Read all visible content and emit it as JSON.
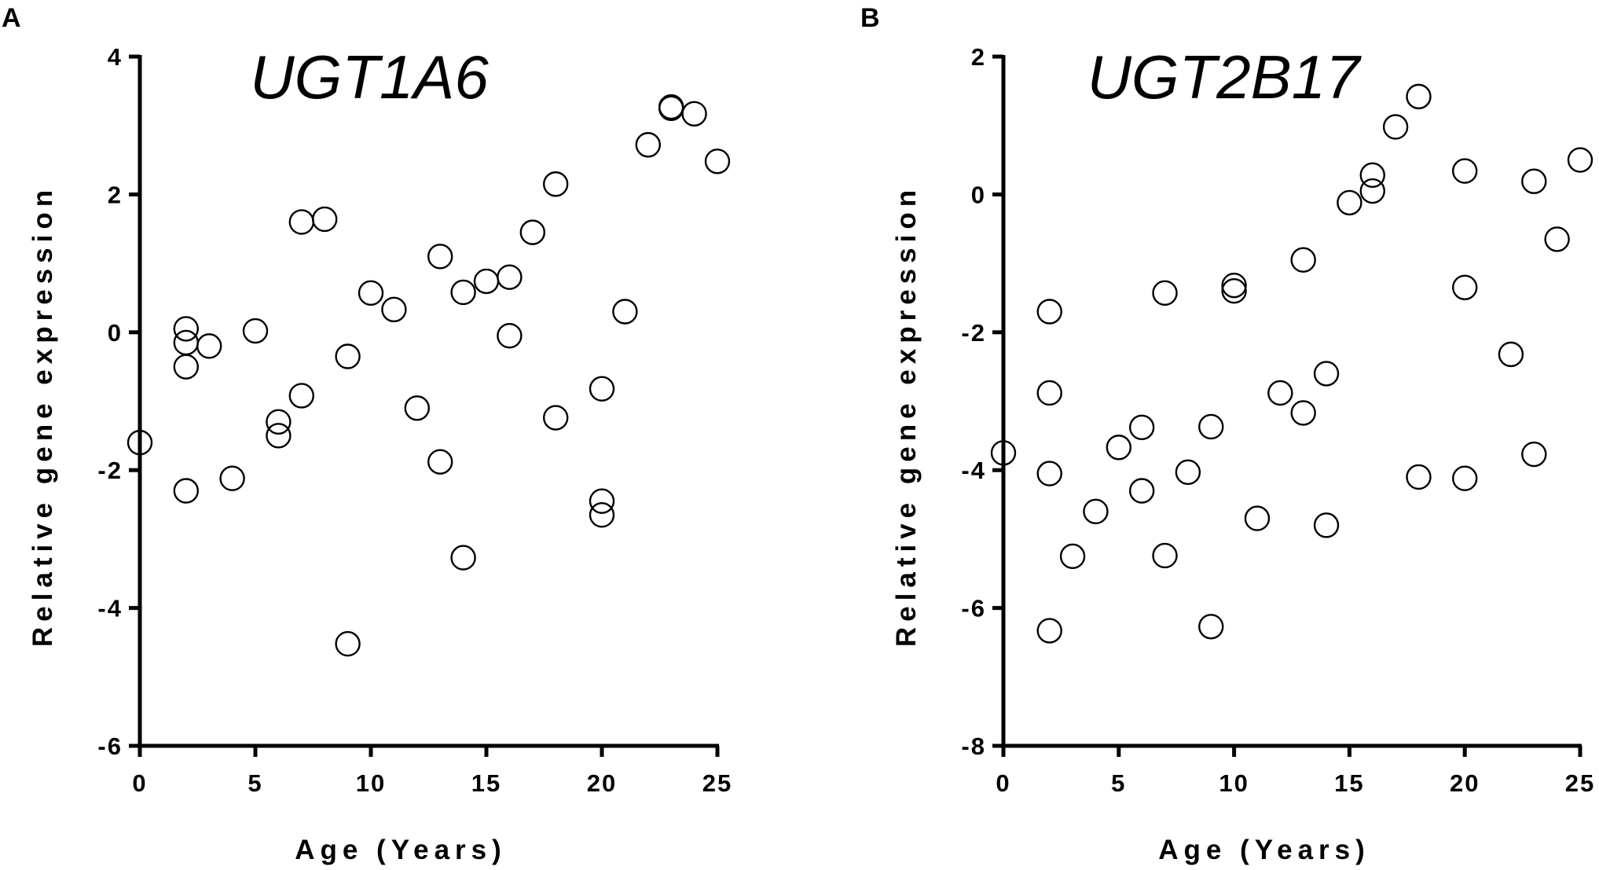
{
  "chart_data": [
    {
      "panel": "A",
      "type": "scatter",
      "title": "UGT1A6",
      "xlabel": "Age (Years)",
      "ylabel": "Relative gene expression",
      "xlim": [
        0,
        25
      ],
      "ylim": [
        -6,
        4
      ],
      "xticks": [
        0,
        5,
        10,
        15,
        20,
        25
      ],
      "yticks": [
        -6,
        -4,
        -2,
        0,
        2,
        4
      ],
      "grid": false,
      "points": [
        {
          "x": 0,
          "y": -1.6
        },
        {
          "x": 2,
          "y": 0.05
        },
        {
          "x": 2,
          "y": -0.15
        },
        {
          "x": 2,
          "y": -0.5
        },
        {
          "x": 2,
          "y": -2.3
        },
        {
          "x": 3,
          "y": -0.2
        },
        {
          "x": 4,
          "y": -2.12
        },
        {
          "x": 5,
          "y": 0.02
        },
        {
          "x": 6,
          "y": -1.3
        },
        {
          "x": 6,
          "y": -1.5
        },
        {
          "x": 7,
          "y": 1.6
        },
        {
          "x": 7,
          "y": -0.92
        },
        {
          "x": 8,
          "y": 1.64
        },
        {
          "x": 9,
          "y": -0.35
        },
        {
          "x": 9,
          "y": -4.52
        },
        {
          "x": 10,
          "y": 0.57
        },
        {
          "x": 11,
          "y": 0.33
        },
        {
          "x": 12,
          "y": -1.1
        },
        {
          "x": 13,
          "y": 1.1
        },
        {
          "x": 13,
          "y": -1.88
        },
        {
          "x": 14,
          "y": 0.58
        },
        {
          "x": 14,
          "y": -3.27
        },
        {
          "x": 15,
          "y": 0.74
        },
        {
          "x": 16,
          "y": 0.8
        },
        {
          "x": 16,
          "y": -0.05
        },
        {
          "x": 17,
          "y": 1.45
        },
        {
          "x": 18,
          "y": 2.15
        },
        {
          "x": 18,
          "y": -1.24
        },
        {
          "x": 20,
          "y": -0.82
        },
        {
          "x": 20,
          "y": -2.45
        },
        {
          "x": 20,
          "y": -2.65
        },
        {
          "x": 21,
          "y": 0.3
        },
        {
          "x": 22,
          "y": 2.72
        },
        {
          "x": 23,
          "y": 3.27
        },
        {
          "x": 23,
          "y": 3.25
        },
        {
          "x": 24,
          "y": 3.17
        },
        {
          "x": 25,
          "y": 2.48
        }
      ]
    },
    {
      "panel": "B",
      "type": "scatter",
      "title": "UGT2B17",
      "xlabel": "Age (Years)",
      "ylabel": "Relative gene expression",
      "xlim": [
        0,
        25
      ],
      "ylim": [
        -8,
        2
      ],
      "xticks": [
        0,
        5,
        10,
        15,
        20,
        25
      ],
      "yticks": [
        -8,
        -6,
        -4,
        -2,
        0,
        2
      ],
      "grid": false,
      "points": [
        {
          "x": 0,
          "y": -3.75
        },
        {
          "x": 2,
          "y": -1.7
        },
        {
          "x": 2,
          "y": -2.88
        },
        {
          "x": 2,
          "y": -4.05
        },
        {
          "x": 2,
          "y": -6.33
        },
        {
          "x": 3,
          "y": -5.25
        },
        {
          "x": 4,
          "y": -4.6
        },
        {
          "x": 5,
          "y": -3.67
        },
        {
          "x": 6,
          "y": -3.38
        },
        {
          "x": 6,
          "y": -4.3
        },
        {
          "x": 7,
          "y": -1.43
        },
        {
          "x": 7,
          "y": -5.24
        },
        {
          "x": 8,
          "y": -4.03
        },
        {
          "x": 9,
          "y": -3.37
        },
        {
          "x": 9,
          "y": -6.27
        },
        {
          "x": 10,
          "y": -1.32
        },
        {
          "x": 10,
          "y": -1.4
        },
        {
          "x": 11,
          "y": -4.7
        },
        {
          "x": 12,
          "y": -2.88
        },
        {
          "x": 13,
          "y": -0.95
        },
        {
          "x": 13,
          "y": -3.17
        },
        {
          "x": 14,
          "y": -2.6
        },
        {
          "x": 14,
          "y": -4.8
        },
        {
          "x": 15,
          "y": -0.12
        },
        {
          "x": 16,
          "y": 0.28
        },
        {
          "x": 16,
          "y": 0.05
        },
        {
          "x": 17,
          "y": 0.98
        },
        {
          "x": 18,
          "y": 1.42
        },
        {
          "x": 18,
          "y": -4.1
        },
        {
          "x": 20,
          "y": 0.34
        },
        {
          "x": 20,
          "y": -1.35
        },
        {
          "x": 20,
          "y": -4.12
        },
        {
          "x": 22,
          "y": -2.32
        },
        {
          "x": 23,
          "y": 0.19
        },
        {
          "x": 23,
          "y": -3.77
        },
        {
          "x": 24,
          "y": -0.65
        },
        {
          "x": 25,
          "y": 0.5
        }
      ]
    }
  ]
}
